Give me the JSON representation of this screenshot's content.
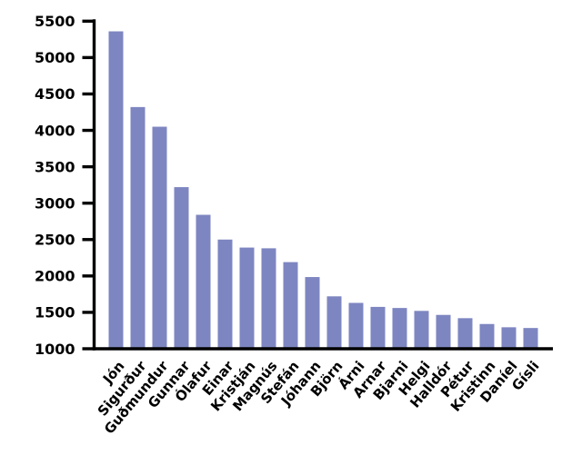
{
  "figure": {
    "background_color": "#ffffff",
    "title": ""
  },
  "chart_data": {
    "type": "bar",
    "title": "",
    "xlabel": "",
    "ylabel": "",
    "categories": [
      "Jón",
      "Sigurður",
      "Guðmundur",
      "Gunnar",
      "Ólafur",
      "Einar",
      "Kristján",
      "Magnús",
      "Stefán",
      "Jóhann",
      "Björn",
      "Árni",
      "Arnar",
      "Bjarni",
      "Helgi",
      "Halldór",
      "Pétur",
      "Kristinn",
      "Daníel",
      "Gísli"
    ],
    "values": [
      5360,
      4320,
      4050,
      3220,
      2840,
      2500,
      2390,
      2380,
      2190,
      1985,
      1720,
      1630,
      1575,
      1560,
      1520,
      1465,
      1420,
      1340,
      1295,
      1285
    ],
    "ylim": [
      1000,
      5500
    ],
    "yticks": [
      1000,
      1500,
      2000,
      2500,
      3000,
      3500,
      4000,
      4500,
      5000,
      5500
    ],
    "xtick_rotation_deg": 50,
    "bar_color": "#7e86c1",
    "axis_color": "#000000",
    "grid": false,
    "legend": "none"
  }
}
